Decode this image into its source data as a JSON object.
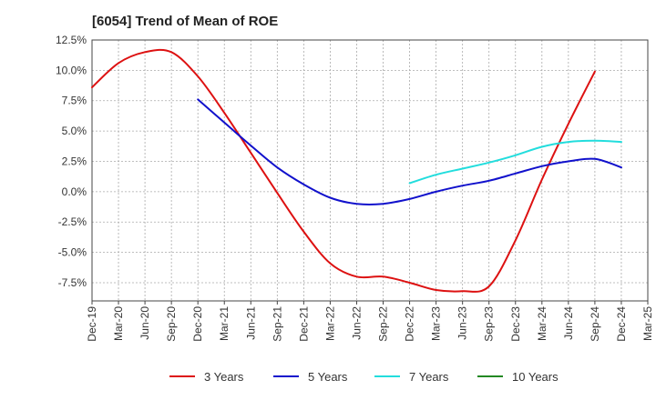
{
  "chart_data": {
    "type": "line",
    "title": "[6054]  Trend of Mean of ROE",
    "xlabel": "",
    "ylabel": "",
    "x": [
      "Dec-19",
      "Mar-20",
      "Jun-20",
      "Sep-20",
      "Dec-20",
      "Mar-21",
      "Jun-21",
      "Sep-21",
      "Dec-21",
      "Mar-22",
      "Jun-22",
      "Sep-22",
      "Dec-22",
      "Mar-23",
      "Jun-23",
      "Sep-23",
      "Dec-23",
      "Mar-24",
      "Jun-24",
      "Sep-24",
      "Dec-24",
      "Mar-25"
    ],
    "ylim": [
      -9.0,
      12.5
    ],
    "yticks": [
      12.5,
      10.0,
      7.5,
      5.0,
      2.5,
      0.0,
      -2.5,
      -5.0,
      -7.5
    ],
    "ytick_labels": [
      "12.5%",
      "10.0%",
      "7.5%",
      "5.0%",
      "2.5%",
      "0.0%",
      "-2.5%",
      "-5.0%",
      "-7.5%"
    ],
    "grid": true,
    "legend_position": "bottom",
    "series": [
      {
        "name": "3 Years",
        "color": "#dd1111",
        "points": [
          [
            0,
            8.6
          ],
          [
            1,
            10.6
          ],
          [
            2,
            11.5
          ],
          [
            3,
            11.5
          ],
          [
            4,
            9.5
          ],
          [
            5,
            6.5
          ],
          [
            6,
            3.2
          ],
          [
            7,
            -0.1
          ],
          [
            8,
            -3.3
          ],
          [
            9,
            -5.9
          ],
          [
            10,
            -7.0
          ],
          [
            11,
            -7.0
          ],
          [
            12,
            -7.5
          ],
          [
            13,
            -8.1
          ],
          [
            14,
            -8.2
          ],
          [
            15,
            -7.8
          ],
          [
            16,
            -4.0
          ],
          [
            17,
            1.0
          ],
          [
            18,
            5.6
          ],
          [
            19,
            9.9
          ]
        ]
      },
      {
        "name": "5 Years",
        "color": "#1111cc",
        "points": [
          [
            4,
            7.6
          ],
          [
            5,
            5.7
          ],
          [
            6,
            3.8
          ],
          [
            7,
            2.0
          ],
          [
            8,
            0.6
          ],
          [
            9,
            -0.5
          ],
          [
            10,
            -1.0
          ],
          [
            11,
            -1.0
          ],
          [
            12,
            -0.6
          ],
          [
            13,
            0.0
          ],
          [
            14,
            0.5
          ],
          [
            15,
            0.9
          ],
          [
            16,
            1.5
          ],
          [
            17,
            2.1
          ],
          [
            18,
            2.5
          ],
          [
            19,
            2.7
          ],
          [
            20,
            2.0
          ]
        ]
      },
      {
        "name": "7 Years",
        "color": "#22dddd",
        "points": [
          [
            12,
            0.7
          ],
          [
            13,
            1.4
          ],
          [
            14,
            1.9
          ],
          [
            15,
            2.4
          ],
          [
            16,
            3.0
          ],
          [
            17,
            3.7
          ],
          [
            18,
            4.1
          ],
          [
            19,
            4.2
          ],
          [
            20,
            4.1
          ]
        ]
      },
      {
        "name": "10 Years",
        "color": "#228822",
        "points": []
      }
    ]
  }
}
